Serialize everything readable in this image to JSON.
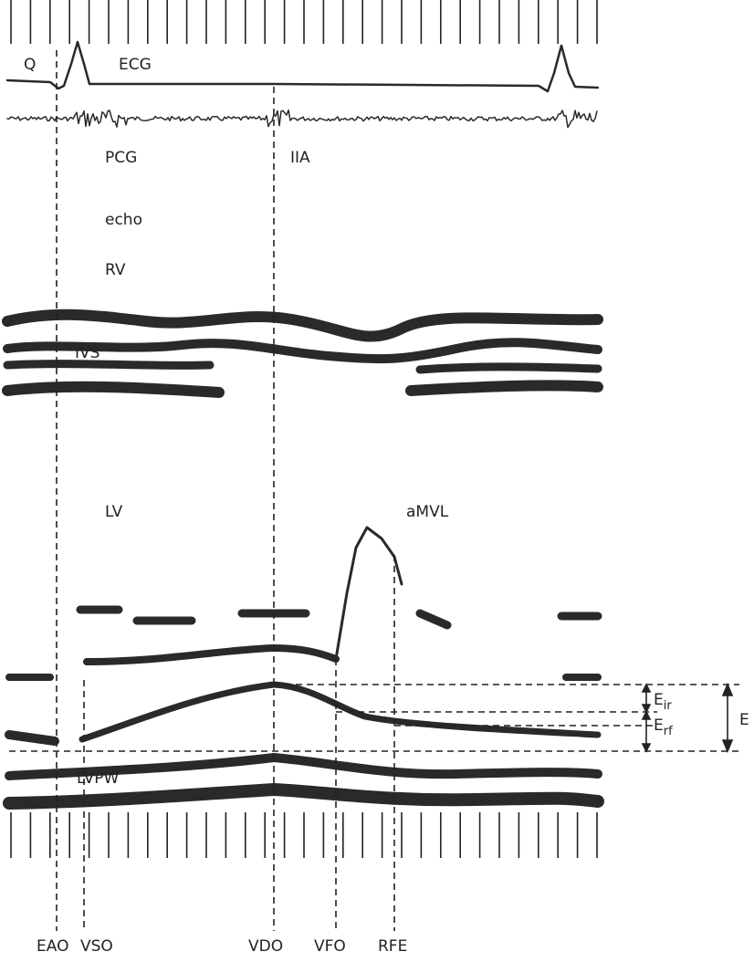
{
  "traces": {
    "q": "Q",
    "ecg": "ECG",
    "pcg": "PCG",
    "second_sound": "IIA",
    "echo": "echo",
    "rv": "RV",
    "ivs": "IVS",
    "lv": "LV",
    "amvl": "aMVL",
    "lvpw": "LVPW"
  },
  "measures": {
    "eir": {
      "main": "E",
      "sub": "ir"
    },
    "erf": {
      "main": "E",
      "sub": "rf"
    },
    "e": "E"
  },
  "events": [
    "EAO",
    "VSO",
    "VDO",
    "VFO",
    "RFE"
  ]
}
